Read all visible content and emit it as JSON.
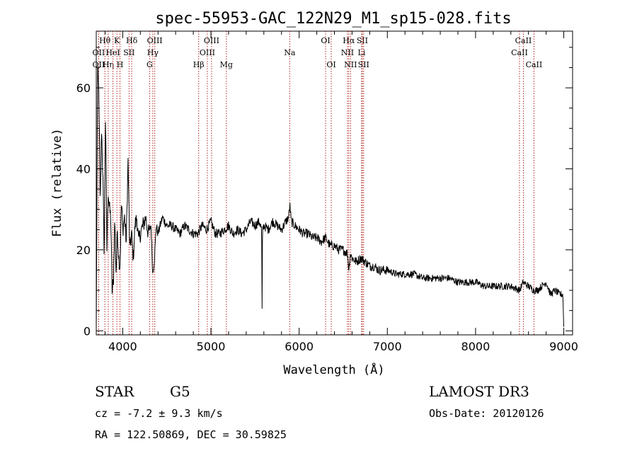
{
  "chart_data": {
    "type": "line",
    "title": "spec-55953-GAC_122N29_M1_sp15-028.fits",
    "xlabel": "Wavelength (Å)",
    "ylabel": "Flux (relative)",
    "xlim": [
      3700,
      9100
    ],
    "ylim": [
      -1,
      74
    ],
    "x_ticks": [
      4000,
      5000,
      6000,
      7000,
      8000,
      9000
    ],
    "x_tick_labels": [
      "4000",
      "5000",
      "6000",
      "7000",
      "8000",
      "9000"
    ],
    "y_ticks": [
      0,
      20,
      40,
      60
    ],
    "y_tick_labels": [
      "0",
      "20",
      "40",
      "60"
    ],
    "series": [
      {
        "name": "flux",
        "x": [
          3700,
          3715,
          3730,
          3745,
          3760,
          3775,
          3790,
          3805,
          3820,
          3835,
          3850,
          3865,
          3880,
          3895,
          3910,
          3925,
          3940,
          3955,
          3970,
          3985,
          4000,
          4020,
          4040,
          4060,
          4080,
          4100,
          4120,
          4140,
          4160,
          4180,
          4200,
          4230,
          4260,
          4290,
          4320,
          4340,
          4360,
          4380,
          4400,
          4450,
          4500,
          4550,
          4600,
          4650,
          4700,
          4750,
          4800,
          4850,
          4900,
          4950,
          5000,
          5050,
          5100,
          5150,
          5200,
          5250,
          5300,
          5350,
          5400,
          5450,
          5500,
          5550,
          5575,
          5580,
          5585,
          5600,
          5650,
          5700,
          5750,
          5800,
          5850,
          5880,
          5895,
          5910,
          5950,
          6000,
          6050,
          6100,
          6150,
          6200,
          6250,
          6300,
          6350,
          6400,
          6450,
          6500,
          6550,
          6563,
          6580,
          6600,
          6650,
          6700,
          6750,
          6800,
          6850,
          6900,
          6950,
          7000,
          7100,
          7200,
          7300,
          7400,
          7500,
          7600,
          7700,
          7800,
          7900,
          8000,
          8100,
          8200,
          8300,
          8400,
          8500,
          8540,
          8600,
          8662,
          8700,
          8750,
          8800,
          8850,
          8900,
          8950,
          8990,
          9000
        ],
        "y": [
          0,
          65,
          58,
          30,
          50,
          38,
          18,
          55,
          20,
          35,
          30,
          28,
          10,
          12,
          28,
          14,
          25,
          18,
          16,
          32,
          25,
          28,
          22,
          42,
          20,
          24,
          18,
          26,
          28,
          22,
          24,
          26,
          28,
          24,
          26,
          14,
          18,
          26,
          24,
          28,
          26,
          26,
          25,
          24,
          26,
          25,
          24,
          24,
          26,
          25,
          27,
          24,
          24,
          25,
          26,
          24,
          25,
          24,
          25,
          27,
          26,
          27,
          25,
          5,
          25,
          26,
          25,
          27,
          26,
          25,
          27,
          28,
          31,
          27,
          26,
          25,
          24,
          24,
          23,
          23,
          22,
          23,
          21,
          21,
          20,
          20,
          19,
          15,
          19,
          18,
          17,
          18,
          17,
          16,
          16,
          15,
          15,
          15,
          14,
          14,
          14,
          13,
          13,
          13,
          13,
          12,
          12,
          12,
          11,
          11,
          11,
          11,
          10,
          12,
          11,
          10,
          10,
          11,
          12,
          9,
          10,
          9,
          9,
          1
        ]
      }
    ],
    "line_markers": [
      {
        "label": "OII",
        "wl": 3727,
        "row": 2
      },
      {
        "label": "Hθ",
        "wl": 3798,
        "row": 1
      },
      {
        "label": "OII",
        "wl": 3727,
        "row": 3
      },
      {
        "label": "Hη",
        "wl": 3836,
        "row": 3
      },
      {
        "label": "K",
        "wl": 3934,
        "row": 1
      },
      {
        "label": "HeI",
        "wl": 3889,
        "row": 2
      },
      {
        "label": "H",
        "wl": 3969,
        "row": 3
      },
      {
        "label": "SII",
        "wl": 4072,
        "row": 2
      },
      {
        "label": "Hδ",
        "wl": 4102,
        "row": 1
      },
      {
        "label": "OIII",
        "wl": 4363,
        "row": 1
      },
      {
        "label": "Hγ",
        "wl": 4341,
        "row": 2
      },
      {
        "label": "G",
        "wl": 4305,
        "row": 3
      },
      {
        "label": "Hβ",
        "wl": 4861,
        "row": 3
      },
      {
        "label": "OIII",
        "wl": 5007,
        "row": 1
      },
      {
        "label": "OIII",
        "wl": 4959,
        "row": 2
      },
      {
        "label": "Mg",
        "wl": 5175,
        "row": 3
      },
      {
        "label": "Na",
        "wl": 5893,
        "row": 2
      },
      {
        "label": "OI",
        "wl": 6300,
        "row": 1
      },
      {
        "label": "OI",
        "wl": 6364,
        "row": 3
      },
      {
        "label": "Hα",
        "wl": 6563,
        "row": 1
      },
      {
        "label": "NII",
        "wl": 6548,
        "row": 2
      },
      {
        "label": "NII",
        "wl": 6583,
        "row": 3
      },
      {
        "label": "SII",
        "wl": 6716,
        "row": 1
      },
      {
        "label": "Li",
        "wl": 6708,
        "row": 2
      },
      {
        "label": "SII",
        "wl": 6731,
        "row": 3
      },
      {
        "label": "CaII",
        "wl": 8542,
        "row": 1
      },
      {
        "label": "CaII",
        "wl": 8498,
        "row": 2
      },
      {
        "label": "CaII",
        "wl": 8662,
        "row": 3
      }
    ]
  },
  "info": {
    "object_class": "STAR",
    "subclass": "G5",
    "survey": "LAMOST DR3",
    "redshift": "cz = -7.2 ± 9.3 km/s",
    "obs_date": "Obs-Date: 20120126",
    "coords": "RA = 122.50869, DEC =  30.59825"
  }
}
